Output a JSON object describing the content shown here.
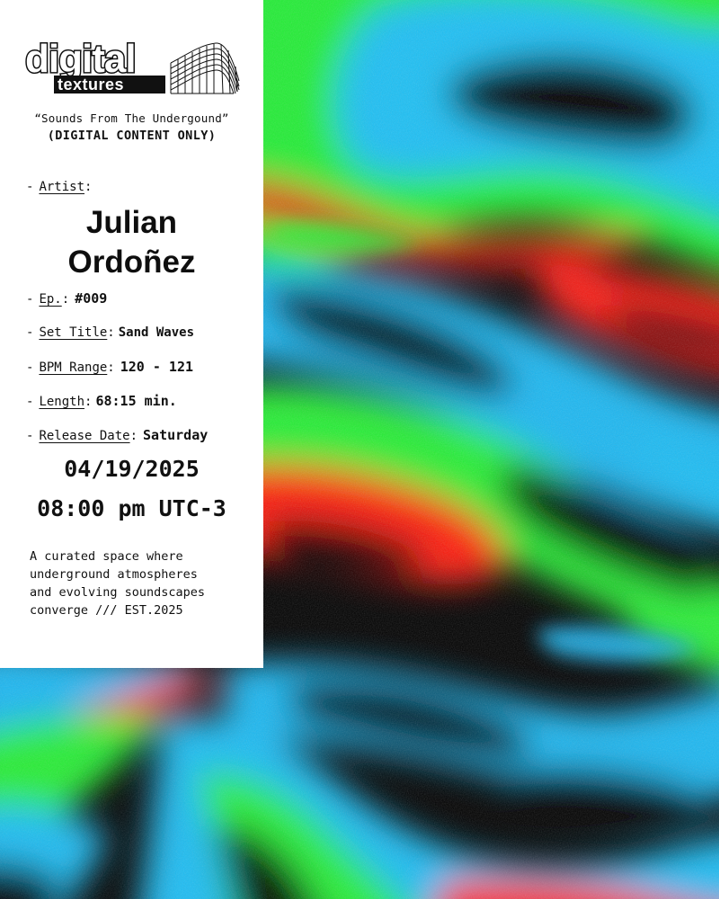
{
  "brand": {
    "logo_top": "digital",
    "logo_bottom": "textures"
  },
  "tagline": "“Sounds From The Undergound”",
  "note": "(DIGITAL CONTENT ONLY)",
  "artist": {
    "label": "Artist",
    "name_line1": "Julian",
    "name_line2": "Ordoñez"
  },
  "episode": {
    "label": "Ep.",
    "value": "#009"
  },
  "set_title": {
    "label": "Set Title",
    "value": "Sand Waves"
  },
  "bpm": {
    "label": "BPM Range",
    "value": "120 - 121"
  },
  "length": {
    "label": "Length",
    "value": "68:15 min."
  },
  "release": {
    "label": "Release Date",
    "day": "Saturday",
    "date": "04/19/2025",
    "time": "08:00 pm UTC-3"
  },
  "blurb": "A curated space where\nunderground atmospheres\nand evolving soundscapes\nconverge /// EST.2025",
  "colors": {
    "black": "#000000",
    "cyan": "#1fb8f2",
    "green": "#29f038",
    "red": "#ff1c10",
    "panel": "#ffffff"
  },
  "icons": {
    "wave_grid": "wave-grid-icon"
  }
}
